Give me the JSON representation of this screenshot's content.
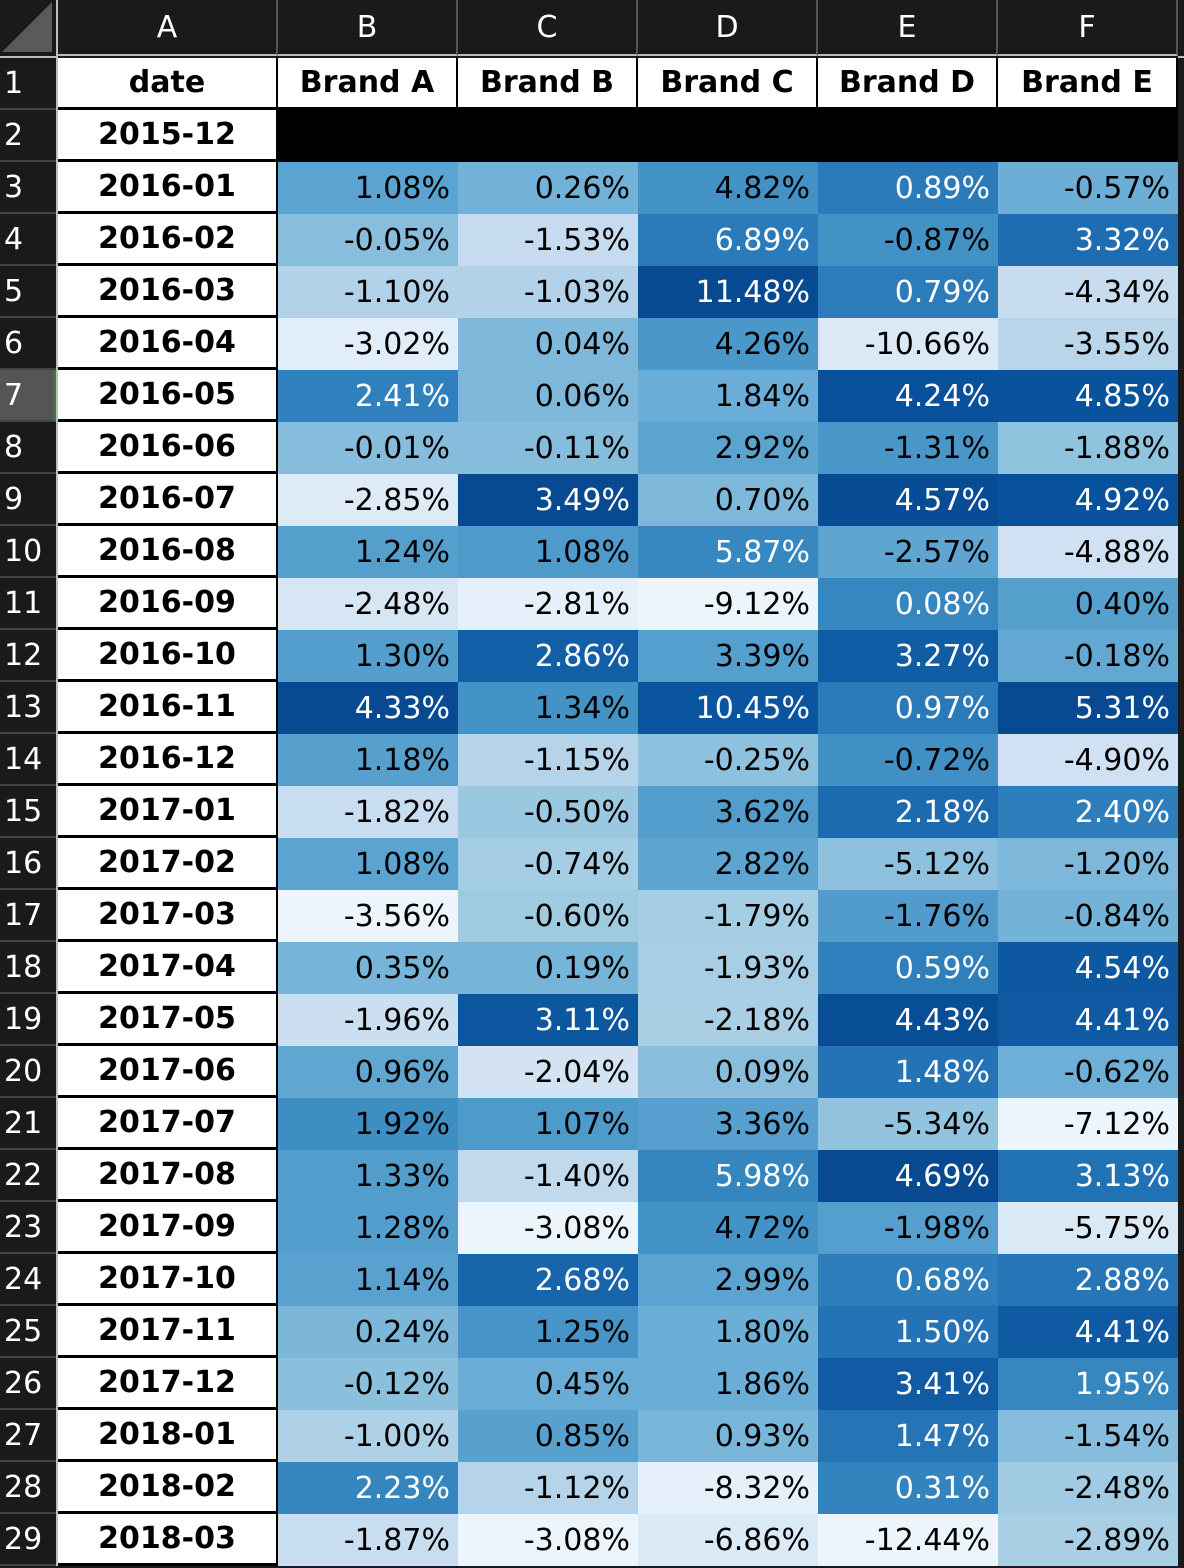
{
  "spreadsheet": {
    "column_headers": [
      "A",
      "B",
      "C",
      "D",
      "E",
      "F"
    ],
    "active_row": 7,
    "header_row": {
      "row_number": "1",
      "labels": [
        "date",
        "Brand A",
        "Brand B",
        "Brand C",
        "Brand D",
        "Brand E"
      ]
    },
    "colors": {
      "header_bg": "#1a1a1a",
      "blank_row_fill": "#000000",
      "active_row_indicator": "#3a7d3a",
      "light_text": "#ffffff",
      "dark_text": "#000000"
    },
    "rows": [
      {
        "n": "2",
        "date": "2015-12",
        "vals": [
          "",
          "",
          "",
          "",
          ""
        ]
      },
      {
        "n": "3",
        "date": "2016-01",
        "vals": [
          "1.08%",
          "0.26%",
          "4.82%",
          "0.89%",
          "-0.57%"
        ]
      },
      {
        "n": "4",
        "date": "2016-02",
        "vals": [
          "-0.05%",
          "-1.53%",
          "6.89%",
          "-0.87%",
          "3.32%"
        ]
      },
      {
        "n": "5",
        "date": "2016-03",
        "vals": [
          "-1.10%",
          "-1.03%",
          "11.48%",
          "0.79%",
          "-4.34%"
        ]
      },
      {
        "n": "6",
        "date": "2016-04",
        "vals": [
          "-3.02%",
          "0.04%",
          "4.26%",
          "-10.66%",
          "-3.55%"
        ]
      },
      {
        "n": "7",
        "date": "2016-05",
        "vals": [
          "2.41%",
          "0.06%",
          "1.84%",
          "4.24%",
          "4.85%"
        ]
      },
      {
        "n": "8",
        "date": "2016-06",
        "vals": [
          "-0.01%",
          "-0.11%",
          "2.92%",
          "-1.31%",
          "-1.88%"
        ]
      },
      {
        "n": "9",
        "date": "2016-07",
        "vals": [
          "-2.85%",
          "3.49%",
          "0.70%",
          "4.57%",
          "4.92%"
        ]
      },
      {
        "n": "10",
        "date": "2016-08",
        "vals": [
          "1.24%",
          "1.08%",
          "5.87%",
          "-2.57%",
          "-4.88%"
        ]
      },
      {
        "n": "11",
        "date": "2016-09",
        "vals": [
          "-2.48%",
          "-2.81%",
          "-9.12%",
          "0.08%",
          "0.40%"
        ]
      },
      {
        "n": "12",
        "date": "2016-10",
        "vals": [
          "1.30%",
          "2.86%",
          "3.39%",
          "3.27%",
          "-0.18%"
        ]
      },
      {
        "n": "13",
        "date": "2016-11",
        "vals": [
          "4.33%",
          "1.34%",
          "10.45%",
          "0.97%",
          "5.31%"
        ]
      },
      {
        "n": "14",
        "date": "2016-12",
        "vals": [
          "1.18%",
          "-1.15%",
          "-0.25%",
          "-0.72%",
          "-4.90%"
        ]
      },
      {
        "n": "15",
        "date": "2017-01",
        "vals": [
          "-1.82%",
          "-0.50%",
          "3.62%",
          "2.18%",
          "2.40%"
        ]
      },
      {
        "n": "16",
        "date": "2017-02",
        "vals": [
          "1.08%",
          "-0.74%",
          "2.82%",
          "-5.12%",
          "-1.20%"
        ]
      },
      {
        "n": "17",
        "date": "2017-03",
        "vals": [
          "-3.56%",
          "-0.60%",
          "-1.79%",
          "-1.76%",
          "-0.84%"
        ]
      },
      {
        "n": "18",
        "date": "2017-04",
        "vals": [
          "0.35%",
          "0.19%",
          "-1.93%",
          "0.59%",
          "4.54%"
        ]
      },
      {
        "n": "19",
        "date": "2017-05",
        "vals": [
          "-1.96%",
          "3.11%",
          "-2.18%",
          "4.43%",
          "4.41%"
        ]
      },
      {
        "n": "20",
        "date": "2017-06",
        "vals": [
          "0.96%",
          "-2.04%",
          "0.09%",
          "1.48%",
          "-0.62%"
        ]
      },
      {
        "n": "21",
        "date": "2017-07",
        "vals": [
          "1.92%",
          "1.07%",
          "3.36%",
          "-5.34%",
          "-7.12%"
        ]
      },
      {
        "n": "22",
        "date": "2017-08",
        "vals": [
          "1.33%",
          "-1.40%",
          "5.98%",
          "4.69%",
          "3.13%"
        ]
      },
      {
        "n": "23",
        "date": "2017-09",
        "vals": [
          "1.28%",
          "-3.08%",
          "4.72%",
          "-1.98%",
          "-5.75%"
        ]
      },
      {
        "n": "24",
        "date": "2017-10",
        "vals": [
          "1.14%",
          "2.68%",
          "2.99%",
          "0.68%",
          "2.88%"
        ]
      },
      {
        "n": "25",
        "date": "2017-11",
        "vals": [
          "0.24%",
          "1.25%",
          "1.80%",
          "1.50%",
          "4.41%"
        ]
      },
      {
        "n": "26",
        "date": "2017-12",
        "vals": [
          "-0.12%",
          "0.45%",
          "1.86%",
          "3.41%",
          "1.95%"
        ]
      },
      {
        "n": "27",
        "date": "2018-01",
        "vals": [
          "-1.00%",
          "0.85%",
          "0.93%",
          "1.47%",
          "-1.54%"
        ]
      },
      {
        "n": "28",
        "date": "2018-02",
        "vals": [
          "2.23%",
          "-1.12%",
          "-8.32%",
          "0.31%",
          "-2.48%"
        ]
      },
      {
        "n": "29",
        "date": "2018-03",
        "vals": [
          "-1.87%",
          "-3.08%",
          "-6.86%",
          "-12.44%",
          "-2.89%"
        ]
      }
    ]
  }
}
